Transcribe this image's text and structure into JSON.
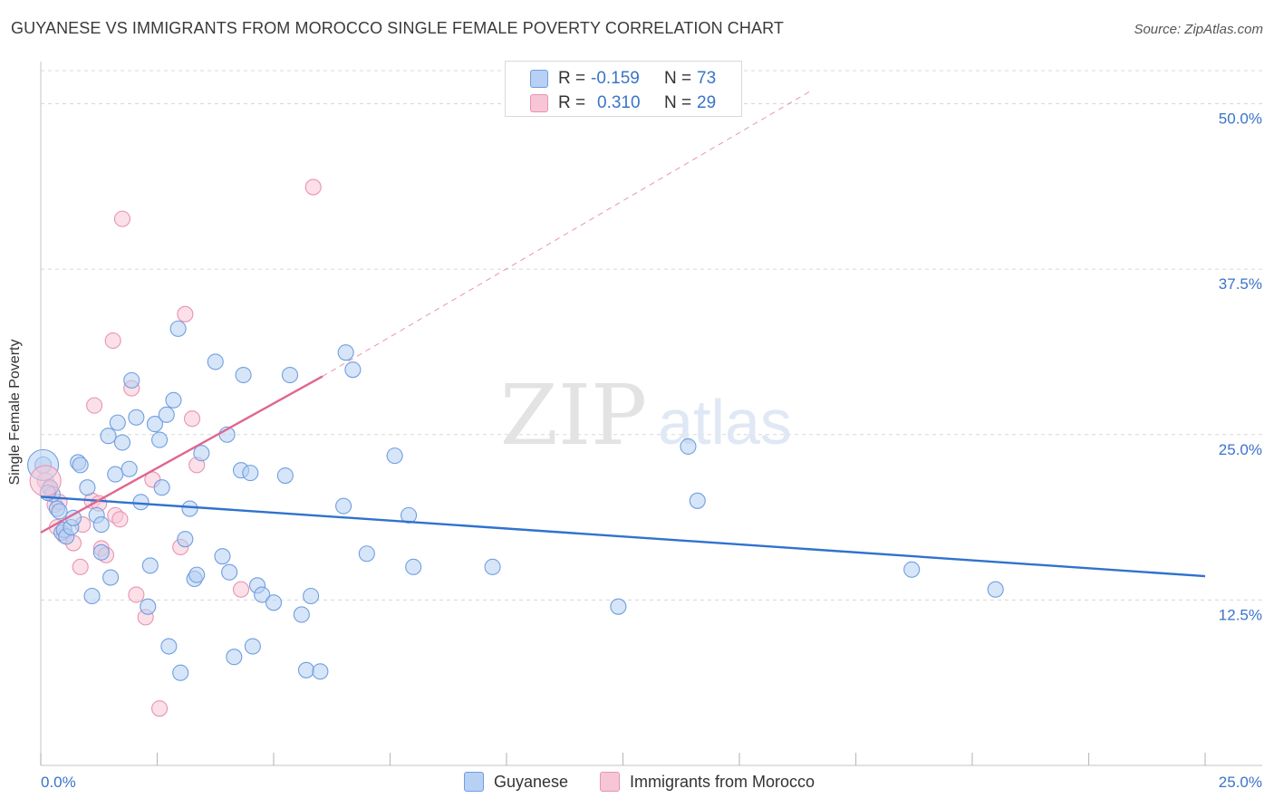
{
  "title": "GUYANESE VS IMMIGRANTS FROM MOROCCO SINGLE FEMALE POVERTY CORRELATION CHART",
  "source": "Source: ZipAtlas.com",
  "watermark": {
    "zip": "ZIP",
    "atlas": "atlas"
  },
  "legend": {
    "rows": [
      {
        "r_label": "R =",
        "r_value": "-0.159",
        "n_label": "N =",
        "n_value": "73"
      },
      {
        "r_label": "R =",
        "r_value": "0.310",
        "n_label": "N =",
        "n_value": "29"
      }
    ]
  },
  "bottom_legend": {
    "guyanese": "Guyanese",
    "morocco": "Immigrants from Morocco"
  },
  "colors": {
    "blue_fill": "#b7d0f3",
    "blue_stroke": "#6f9fe0",
    "blue_line": "#2f72cf",
    "pink_fill": "#f7c6d6",
    "pink_stroke": "#e993b2",
    "pink_line": "#e0668f",
    "axis_text": "#3a74c9",
    "grid": "#d8d8d8"
  },
  "chart_data": {
    "type": "scatter",
    "title": "GUYANESE VS IMMIGRANTS FROM MOROCCO SINGLE FEMALE POVERTY CORRELATION CHART",
    "xlabel": "",
    "ylabel": "Single Female Poverty",
    "xlim": [
      0,
      25
    ],
    "ylim": [
      0,
      52.5
    ],
    "x_tick_labels": [
      "0.0%",
      "25.0%"
    ],
    "y_ticks": [
      12.5,
      25.0,
      37.5,
      50.0
    ],
    "y_tick_labels": [
      "12.5%",
      "25.0%",
      "37.5%",
      "50.0%"
    ],
    "grid": true,
    "legend_position": "top-center",
    "series": [
      {
        "name": "Guyanese",
        "r": -0.159,
        "n": 73,
        "trend": {
          "x": [
            0,
            25
          ],
          "y": [
            20.3,
            14.3
          ]
        },
        "points": [
          [
            0.05,
            22.7
          ],
          [
            0.2,
            21.0
          ],
          [
            0.25,
            20.5
          ],
          [
            0.35,
            19.4
          ],
          [
            0.4,
            19.2
          ],
          [
            0.45,
            17.6
          ],
          [
            0.5,
            17.8
          ],
          [
            0.55,
            17.3
          ],
          [
            0.65,
            18.0
          ],
          [
            0.7,
            18.7
          ],
          [
            0.8,
            22.9
          ],
          [
            0.85,
            22.7
          ],
          [
            1.0,
            21.0
          ],
          [
            1.1,
            12.8
          ],
          [
            1.2,
            18.9
          ],
          [
            1.3,
            18.2
          ],
          [
            1.3,
            16.1
          ],
          [
            1.45,
            24.9
          ],
          [
            1.5,
            14.2
          ],
          [
            1.6,
            22.0
          ],
          [
            1.65,
            25.9
          ],
          [
            1.75,
            24.4
          ],
          [
            1.9,
            22.4
          ],
          [
            1.95,
            29.1
          ],
          [
            2.05,
            26.3
          ],
          [
            2.15,
            19.9
          ],
          [
            2.3,
            12.0
          ],
          [
            2.35,
            15.1
          ],
          [
            2.45,
            25.8
          ],
          [
            2.55,
            24.6
          ],
          [
            2.6,
            21.0
          ],
          [
            2.7,
            26.5
          ],
          [
            2.75,
            9.0
          ],
          [
            2.85,
            27.6
          ],
          [
            2.95,
            33.0
          ],
          [
            3.0,
            7.0
          ],
          [
            3.1,
            17.1
          ],
          [
            3.2,
            19.4
          ],
          [
            3.3,
            14.1
          ],
          [
            3.35,
            14.4
          ],
          [
            3.45,
            23.6
          ],
          [
            3.75,
            30.5
          ],
          [
            3.9,
            15.8
          ],
          [
            4.0,
            25.0
          ],
          [
            4.05,
            14.6
          ],
          [
            4.15,
            8.2
          ],
          [
            4.3,
            22.3
          ],
          [
            4.35,
            29.5
          ],
          [
            4.5,
            22.1
          ],
          [
            4.55,
            9.0
          ],
          [
            4.65,
            13.6
          ],
          [
            4.75,
            12.9
          ],
          [
            5.0,
            12.3
          ],
          [
            5.25,
            21.9
          ],
          [
            5.35,
            29.5
          ],
          [
            5.6,
            11.4
          ],
          [
            5.7,
            7.2
          ],
          [
            5.8,
            12.8
          ],
          [
            6.0,
            7.1
          ],
          [
            6.5,
            19.6
          ],
          [
            6.55,
            31.2
          ],
          [
            6.7,
            29.9
          ],
          [
            7.0,
            16.0
          ],
          [
            7.6,
            23.4
          ],
          [
            7.9,
            18.9
          ],
          [
            8.0,
            15.0
          ],
          [
            9.7,
            15.0
          ],
          [
            12.4,
            12.0
          ],
          [
            13.9,
            24.1
          ],
          [
            14.1,
            20.0
          ],
          [
            18.7,
            14.8
          ],
          [
            20.5,
            13.3
          ],
          [
            0.15,
            20.6
          ]
        ]
      },
      {
        "name": "Immigrants from Morocco",
        "r": 0.31,
        "n": 29,
        "trend": {
          "x": [
            0,
            6.05
          ],
          "y": [
            17.6,
            29.4
          ]
        },
        "trend_dashed": {
          "x": [
            6.05,
            16.5
          ],
          "y": [
            29.4,
            50.9
          ]
        },
        "points": [
          [
            0.1,
            21.5
          ],
          [
            0.2,
            20.9
          ],
          [
            0.3,
            19.7
          ],
          [
            0.35,
            18.0
          ],
          [
            0.5,
            17.4
          ],
          [
            0.7,
            16.8
          ],
          [
            0.85,
            15.0
          ],
          [
            0.9,
            18.2
          ],
          [
            1.1,
            20.0
          ],
          [
            1.15,
            27.2
          ],
          [
            1.25,
            19.8
          ],
          [
            1.3,
            16.4
          ],
          [
            1.4,
            15.9
          ],
          [
            1.55,
            32.1
          ],
          [
            1.6,
            18.9
          ],
          [
            1.7,
            18.6
          ],
          [
            1.75,
            41.3
          ],
          [
            1.95,
            28.5
          ],
          [
            2.05,
            12.9
          ],
          [
            2.25,
            11.2
          ],
          [
            2.4,
            21.6
          ],
          [
            2.55,
            4.3
          ],
          [
            3.0,
            16.5
          ],
          [
            3.1,
            34.1
          ],
          [
            3.25,
            26.2
          ],
          [
            3.35,
            22.7
          ],
          [
            4.3,
            13.3
          ],
          [
            5.85,
            43.7
          ],
          [
            0.4,
            19.9
          ]
        ]
      }
    ]
  }
}
